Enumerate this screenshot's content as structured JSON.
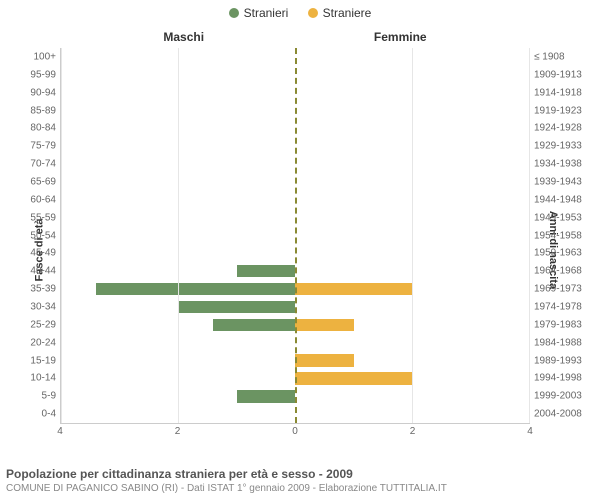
{
  "legend": {
    "male": {
      "label": "Stranieri",
      "color": "#6b9462"
    },
    "female": {
      "label": "Straniere",
      "color": "#edb240"
    }
  },
  "section_labels": {
    "left": "Maschi",
    "right": "Femmine"
  },
  "y_axis_titles": {
    "left": "Fasce di età",
    "right": "Anni di nascita"
  },
  "chart": {
    "type": "population_pyramid",
    "x_max": 4,
    "x_ticks": [
      4,
      2,
      0,
      2,
      4
    ],
    "background_color": "#ffffff",
    "grid_color": "#e6e6e6",
    "center_line_color": "#8a8a33",
    "bar_color_male": "#6b9462",
    "bar_color_female": "#edb240",
    "rows": [
      {
        "age": "100+",
        "birth": "≤ 1908",
        "m": 0,
        "f": 0
      },
      {
        "age": "95-99",
        "birth": "1909-1913",
        "m": 0,
        "f": 0
      },
      {
        "age": "90-94",
        "birth": "1914-1918",
        "m": 0,
        "f": 0
      },
      {
        "age": "85-89",
        "birth": "1919-1923",
        "m": 0,
        "f": 0
      },
      {
        "age": "80-84",
        "birth": "1924-1928",
        "m": 0,
        "f": 0
      },
      {
        "age": "75-79",
        "birth": "1929-1933",
        "m": 0,
        "f": 0
      },
      {
        "age": "70-74",
        "birth": "1934-1938",
        "m": 0,
        "f": 0
      },
      {
        "age": "65-69",
        "birth": "1939-1943",
        "m": 0,
        "f": 0
      },
      {
        "age": "60-64",
        "birth": "1944-1948",
        "m": 0,
        "f": 0
      },
      {
        "age": "55-59",
        "birth": "1949-1953",
        "m": 0,
        "f": 0
      },
      {
        "age": "50-54",
        "birth": "1954-1958",
        "m": 0,
        "f": 0
      },
      {
        "age": "45-49",
        "birth": "1959-1963",
        "m": 0,
        "f": 0
      },
      {
        "age": "40-44",
        "birth": "1964-1968",
        "m": 1,
        "f": 0
      },
      {
        "age": "35-39",
        "birth": "1969-1973",
        "m": 3.4,
        "f": 2
      },
      {
        "age": "30-34",
        "birth": "1974-1978",
        "m": 2,
        "f": 0
      },
      {
        "age": "25-29",
        "birth": "1979-1983",
        "m": 1.4,
        "f": 1
      },
      {
        "age": "20-24",
        "birth": "1984-1988",
        "m": 0,
        "f": 0
      },
      {
        "age": "15-19",
        "birth": "1989-1993",
        "m": 0,
        "f": 1
      },
      {
        "age": "10-14",
        "birth": "1994-1998",
        "m": 0,
        "f": 2
      },
      {
        "age": "5-9",
        "birth": "1999-2003",
        "m": 1,
        "f": 0
      },
      {
        "age": "0-4",
        "birth": "2004-2008",
        "m": 0,
        "f": 0
      }
    ]
  },
  "footer": {
    "title": "Popolazione per cittadinanza straniera per età e sesso - 2009",
    "subtitle": "COMUNE DI PAGANICO SABINO (RI) - Dati ISTAT 1° gennaio 2009 - Elaborazione TUTTITALIA.IT"
  }
}
